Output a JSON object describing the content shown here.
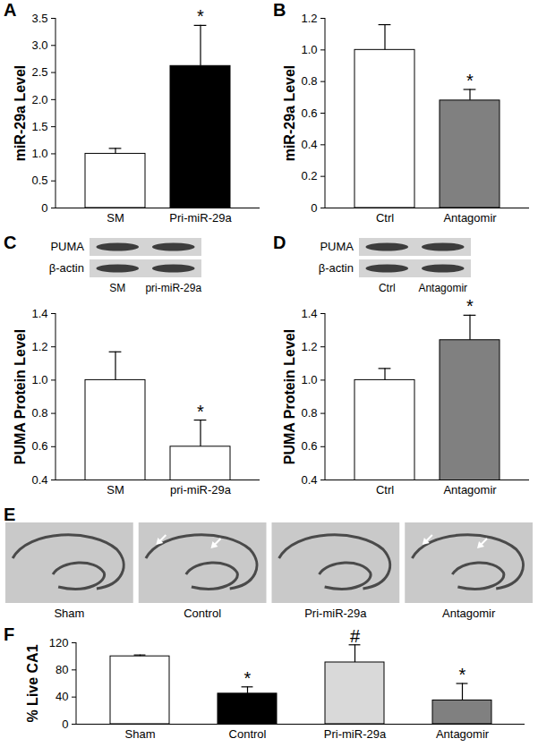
{
  "chart_data": [
    {
      "panel": "A",
      "type": "bar",
      "y_label": "miR-29a Level",
      "categories": [
        "SM",
        "Pri-miR-29a"
      ],
      "values": [
        1.0,
        2.62
      ],
      "errors": [
        0.1,
        0.75
      ],
      "colors": [
        "#ffffff",
        "#000000"
      ],
      "annotations": [
        {
          "category": "Pri-miR-29a",
          "text": "*"
        }
      ],
      "ylim": [
        0,
        3.5
      ],
      "yticks": [
        0,
        0.5,
        {
          "value": 1,
          "label": "1.0"
        },
        1.5,
        {
          "value": 2,
          "label": "2.0"
        },
        2.5,
        {
          "value": 3,
          "label": "3.0"
        },
        3.5
      ]
    },
    {
      "panel": "B",
      "type": "bar",
      "y_label": "miR-29a Level",
      "categories": [
        "Ctrl",
        "Antagomir"
      ],
      "values": [
        1.0,
        0.68
      ],
      "errors": [
        0.16,
        0.07
      ],
      "colors": [
        "#ffffff",
        "#808080"
      ],
      "annotations": [
        {
          "category": "Antagomir",
          "text": "*"
        }
      ],
      "ylim": [
        0,
        1.2
      ],
      "yticks": [
        0,
        0.2,
        0.4,
        0.6,
        0.8,
        {
          "value": 1,
          "label": "1.0"
        },
        1.2
      ]
    },
    {
      "panel": "C",
      "type": "bar",
      "y_label": "PUMA Protein Level",
      "categories": [
        "SM",
        "pri-miR-29a"
      ],
      "values": [
        1.0,
        0.6
      ],
      "errors": [
        0.17,
        0.16
      ],
      "colors": [
        "#ffffff",
        "#ffffff"
      ],
      "annotations": [
        {
          "category": "pri-miR-29a",
          "text": "*"
        }
      ],
      "ylim": [
        0.4,
        1.4
      ],
      "yticks": [
        0.4,
        0.6,
        0.8,
        {
          "value": 1,
          "label": "1.0"
        },
        1.2,
        1.4
      ],
      "blot": {
        "rows": [
          "PUMA",
          "β-actin"
        ],
        "lanes": [
          "SM",
          "pri-miR-29a"
        ]
      }
    },
    {
      "panel": "D",
      "type": "bar",
      "y_label": "PUMA Protein Level",
      "categories": [
        "Ctrl",
        "Antagomir"
      ],
      "values": [
        1.0,
        1.24
      ],
      "errors": [
        0.07,
        0.15
      ],
      "colors": [
        "#ffffff",
        "#808080"
      ],
      "annotations": [
        {
          "category": "Antagomir",
          "text": "*"
        }
      ],
      "ylim": [
        0.4,
        1.4
      ],
      "yticks": [
        0.4,
        0.6,
        0.8,
        {
          "value": 1,
          "label": "1.0"
        },
        1.2,
        1.4
      ],
      "blot": {
        "rows": [
          "PUMA",
          "β-actin"
        ],
        "lanes": [
          "Ctrl",
          "Antagomir"
        ]
      }
    },
    {
      "panel": "F",
      "type": "bar",
      "y_label": "% Live CA1",
      "categories": [
        "Sham",
        "Control",
        "Pri-miR-29a",
        "Antagomir"
      ],
      "values": [
        100,
        45,
        91,
        35
      ],
      "errors": [
        2,
        10,
        26,
        25
      ],
      "colors": [
        "#ffffff",
        "#000000",
        "#d9d9d9",
        "#808080"
      ],
      "annotations": [
        {
          "category": "Control",
          "text": "*"
        },
        {
          "category": "Pri-miR-29a",
          "text": "#"
        },
        {
          "category": "Antagomir",
          "text": "*"
        }
      ],
      "ylim": [
        0,
        120
      ],
      "yticks": [
        0,
        40,
        80,
        120
      ]
    }
  ],
  "micrographs": {
    "panel": "E",
    "images": [
      {
        "label": "Sham",
        "arrows": 0
      },
      {
        "label": "Control",
        "arrows": 2
      },
      {
        "label": "Pri-miR-29a",
        "arrows": 0
      },
      {
        "label": "Antagomir",
        "arrows": 2
      }
    ]
  }
}
